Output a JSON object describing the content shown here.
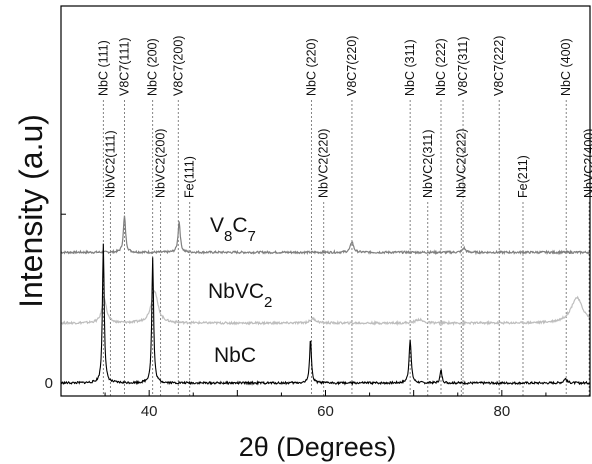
{
  "chart_data": {
    "type": "line",
    "title": "",
    "xlabel": "2θ (Degrees)",
    "ylabel": "Intensity (a.u)",
    "xlim": [
      30,
      90
    ],
    "ylim": [
      0,
      1
    ],
    "x_ticks": [
      40,
      60,
      80
    ],
    "y_ticks": [
      {
        "value": 0,
        "label": "0"
      },
      {
        "value": 0.465,
        "label": ""
      }
    ],
    "grid": false,
    "colors": {
      "axis": "#000000",
      "v8c7": "#7f7f7f",
      "nbvc2": "#bdbdbd",
      "nbc": "#000000",
      "reference": "#666666"
    },
    "reference_lines_top": [
      {
        "label": "NbC (111)",
        "x": 34.8
      },
      {
        "label": "V8C7(111)",
        "x": 37.2
      },
      {
        "label": "NbC (200)",
        "x": 40.4
      },
      {
        "label": "V8C7(200)",
        "x": 43.3
      },
      {
        "label": "NbC (220)",
        "x": 58.4
      },
      {
        "label": "V8C7(220)",
        "x": 63.0
      },
      {
        "label": "NbC (311)",
        "x": 69.6
      },
      {
        "label": "NbC (222)",
        "x": 73.1
      },
      {
        "label": "V8C7(311)",
        "x": 75.6
      },
      {
        "label": "V8C7(222)",
        "x": 79.7
      },
      {
        "label": "NbC (400)",
        "x": 87.3
      }
    ],
    "reference_lines_mid": [
      {
        "label": "NbVC2(111)",
        "x": 35.6
      },
      {
        "label": "NbVC2(200)",
        "x": 41.3
      },
      {
        "label": "Fe(111)",
        "x": 44.6
      },
      {
        "label": "NbVC2(220)",
        "x": 59.8
      },
      {
        "label": "NbVC2(311)",
        "x": 71.6
      },
      {
        "label": "NbVC2(222)",
        "x": 75.4
      },
      {
        "label": "Fe(211)",
        "x": 82.4
      },
      {
        "label": "NbVC2(400)",
        "x": 89.9
      }
    ],
    "series": [
      {
        "name": "V8C7",
        "label_main": "V",
        "label_sub1": "8",
        "label_c": "C",
        "label_sub2": "7",
        "baseline": 0.36,
        "peaks": [
          {
            "x": 37.2,
            "height": 0.1,
            "width": 0.15
          },
          {
            "x": 43.4,
            "height": 0.085,
            "width": 0.15
          },
          {
            "x": 63.0,
            "height": 0.03,
            "width": 0.2
          },
          {
            "x": 75.7,
            "height": 0.012,
            "width": 0.2
          }
        ]
      },
      {
        "name": "NbVC2",
        "label_main": "NbVC",
        "label_sub1": "2",
        "baseline": 0.165,
        "peaks": [
          {
            "x": 34.9,
            "height": 0.07,
            "width": 0.3
          },
          {
            "x": 40.6,
            "height": 0.09,
            "width": 0.45
          },
          {
            "x": 58.6,
            "height": 0.012,
            "width": 0.4
          },
          {
            "x": 70.6,
            "height": 0.01,
            "width": 0.45
          },
          {
            "x": 88.5,
            "height": 0.07,
            "width": 0.8
          }
        ]
      },
      {
        "name": "NbC",
        "label_main": "NbC",
        "baseline": 0.0,
        "peaks": [
          {
            "x": 34.8,
            "height": 0.385,
            "width": 0.12
          },
          {
            "x": 40.4,
            "height": 0.345,
            "width": 0.12
          },
          {
            "x": 58.3,
            "height": 0.125,
            "width": 0.12
          },
          {
            "x": 69.6,
            "height": 0.122,
            "width": 0.14
          },
          {
            "x": 73.1,
            "height": 0.035,
            "width": 0.13
          },
          {
            "x": 87.2,
            "height": 0.012,
            "width": 0.2
          }
        ]
      }
    ]
  }
}
